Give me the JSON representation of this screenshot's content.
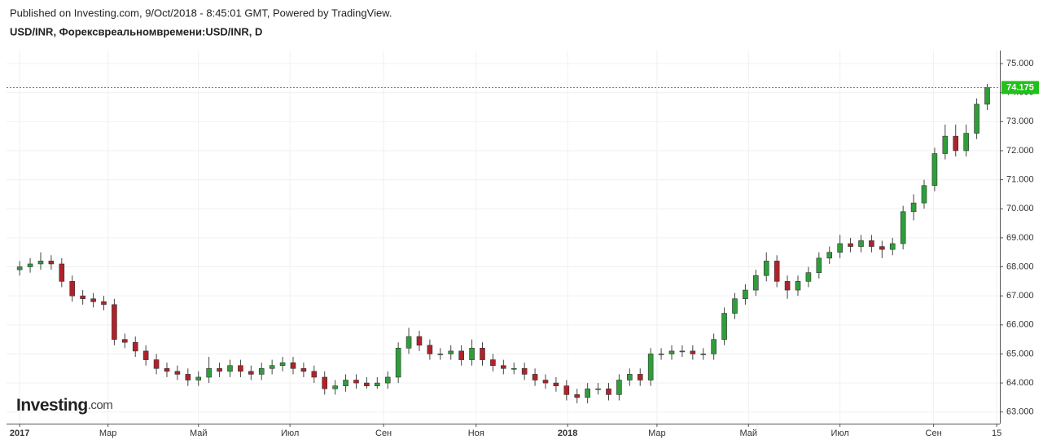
{
  "header": {
    "published": "Published on Investing.com, 9/Oct/2018 - 8:45:01 GMT, Powered by TradingView.",
    "logo": "Investing",
    "logo_suffix": ".com"
  },
  "chart_data": {
    "type": "candlestick",
    "title": "USD/INR, Форексвреальномвремени:USD/INR, D",
    "up_color": "#2f9e3a",
    "down_color": "#b0222a",
    "price_line_color": "#21c11a",
    "grid": true,
    "xlim": [
      -1.25,
      93.2
    ],
    "xticks": [
      {
        "value": 0,
        "label": "2017"
      },
      {
        "value": 8.4,
        "label": "Мар"
      },
      {
        "value": 17,
        "label": "Май"
      },
      {
        "value": 25.7,
        "label": "Июл"
      },
      {
        "value": 34.6,
        "label": "Сен"
      },
      {
        "value": 43.4,
        "label": "Ноя"
      },
      {
        "value": 52.1,
        "label": "2018"
      },
      {
        "value": 60.6,
        "label": "Мар"
      },
      {
        "value": 69.3,
        "label": "Май"
      },
      {
        "value": 78,
        "label": "Июл"
      },
      {
        "value": 86.9,
        "label": "Сен"
      },
      {
        "value": 92.9,
        "label": "15"
      }
    ],
    "ylim": [
      62.6,
      75.45
    ],
    "yticks": [
      {
        "value": 63,
        "label": "63.000"
      },
      {
        "value": 64,
        "label": "64.000"
      },
      {
        "value": 65,
        "label": "65.000"
      },
      {
        "value": 66,
        "label": "66.000"
      },
      {
        "value": 67,
        "label": "67.000"
      },
      {
        "value": 68,
        "label": "68.000"
      },
      {
        "value": 69,
        "label": "69.000"
      },
      {
        "value": 70,
        "label": "70.000"
      },
      {
        "value": 71,
        "label": "71.000"
      },
      {
        "value": 72,
        "label": "72.000"
      },
      {
        "value": 73,
        "label": "73.000"
      },
      {
        "value": 74,
        "label": "74.000"
      },
      {
        "value": 75,
        "label": "75.000"
      }
    ],
    "open": [
      67.9,
      68.0,
      68.1,
      68.2,
      68.1,
      67.5,
      67.0,
      66.9,
      66.8,
      66.7,
      65.5,
      65.4,
      65.1,
      64.8,
      64.5,
      64.4,
      64.3,
      64.1,
      64.2,
      64.5,
      64.4,
      64.6,
      64.4,
      64.3,
      64.5,
      64.6,
      64.7,
      64.5,
      64.4,
      64.2,
      63.8,
      63.9,
      64.1,
      64.0,
      63.9,
      64.0,
      64.2,
      65.2,
      65.6,
      65.3,
      65.0,
      65.0,
      65.1,
      64.8,
      65.2,
      64.8,
      64.6,
      64.5,
      64.5,
      64.3,
      64.1,
      64.0,
      63.9,
      63.6,
      63.5,
      63.8,
      63.8,
      63.6,
      64.1,
      64.3,
      64.1,
      65.0,
      65.0,
      65.1,
      65.1,
      65.0,
      65.0,
      65.5,
      66.4,
      66.9,
      67.2,
      67.7,
      68.2,
      67.5,
      67.2,
      67.5,
      67.8,
      68.3,
      68.5,
      68.8,
      68.7,
      68.9,
      68.7,
      68.6,
      68.8,
      69.9,
      70.2,
      70.8,
      71.9,
      72.5,
      72.0,
      72.6,
      73.6
    ],
    "high": [
      68.2,
      68.3,
      68.5,
      68.4,
      68.3,
      67.7,
      67.2,
      67.1,
      67.0,
      66.9,
      65.7,
      65.6,
      65.3,
      65.0,
      64.7,
      64.6,
      64.5,
      64.4,
      64.9,
      64.7,
      64.8,
      64.8,
      64.6,
      64.7,
      64.8,
      64.9,
      64.9,
      64.7,
      64.6,
      64.4,
      64.1,
      64.3,
      64.3,
      64.2,
      64.2,
      64.4,
      65.4,
      65.9,
      65.8,
      65.5,
      65.2,
      65.3,
      65.3,
      65.5,
      65.4,
      65.0,
      64.8,
      64.7,
      64.7,
      64.5,
      64.3,
      64.2,
      64.1,
      63.8,
      64.0,
      64.0,
      64.0,
      64.3,
      64.5,
      64.5,
      65.2,
      65.2,
      65.3,
      65.3,
      65.3,
      65.2,
      65.7,
      66.6,
      67.1,
      67.4,
      67.9,
      68.5,
      68.4,
      67.7,
      67.7,
      68.0,
      68.5,
      68.7,
      69.1,
      69.0,
      69.1,
      69.1,
      68.9,
      69.0,
      70.1,
      70.5,
      71.0,
      72.1,
      72.9,
      72.9,
      72.9,
      73.8,
      74.3
    ],
    "low": [
      67.7,
      67.8,
      67.9,
      67.9,
      67.3,
      66.8,
      66.7,
      66.6,
      66.5,
      65.3,
      65.2,
      64.9,
      64.6,
      64.3,
      64.2,
      64.1,
      63.9,
      63.9,
      64.0,
      64.2,
      64.2,
      64.2,
      64.1,
      64.1,
      64.3,
      64.4,
      64.3,
      64.2,
      64.0,
      63.6,
      63.6,
      63.7,
      63.8,
      63.8,
      63.8,
      63.8,
      64.0,
      65.0,
      65.1,
      64.8,
      64.8,
      64.8,
      64.6,
      64.6,
      64.6,
      64.4,
      64.3,
      64.3,
      64.1,
      63.9,
      63.8,
      63.7,
      63.4,
      63.3,
      63.3,
      63.6,
      63.4,
      63.4,
      63.9,
      63.9,
      63.9,
      64.8,
      64.8,
      64.9,
      64.8,
      64.8,
      64.8,
      65.3,
      66.2,
      66.7,
      67.0,
      67.5,
      67.3,
      66.9,
      67.0,
      67.3,
      67.6,
      68.1,
      68.3,
      68.5,
      68.5,
      68.5,
      68.3,
      68.4,
      68.6,
      69.6,
      70.0,
      70.6,
      71.7,
      71.8,
      71.8,
      72.4,
      73.4
    ],
    "close": [
      68.0,
      68.1,
      68.2,
      68.1,
      67.5,
      67.0,
      66.9,
      66.8,
      66.7,
      65.5,
      65.4,
      65.1,
      64.8,
      64.5,
      64.4,
      64.3,
      64.1,
      64.2,
      64.5,
      64.4,
      64.6,
      64.4,
      64.3,
      64.5,
      64.6,
      64.7,
      64.5,
      64.4,
      64.2,
      63.8,
      63.9,
      64.1,
      64.0,
      63.9,
      64.0,
      64.2,
      65.2,
      65.6,
      65.3,
      65.0,
      65.0,
      65.1,
      64.8,
      65.2,
      64.8,
      64.6,
      64.5,
      64.5,
      64.3,
      64.1,
      64.0,
      63.9,
      63.6,
      63.5,
      63.8,
      63.8,
      63.6,
      64.1,
      64.3,
      64.1,
      65.0,
      65.0,
      65.1,
      65.1,
      65.0,
      65.0,
      65.5,
      66.4,
      66.9,
      67.2,
      67.7,
      68.2,
      67.5,
      67.2,
      67.5,
      67.8,
      68.3,
      68.5,
      68.8,
      68.7,
      68.9,
      68.7,
      68.6,
      68.8,
      69.9,
      70.2,
      70.8,
      71.9,
      72.5,
      72.0,
      72.6,
      73.6,
      74.175
    ]
  }
}
